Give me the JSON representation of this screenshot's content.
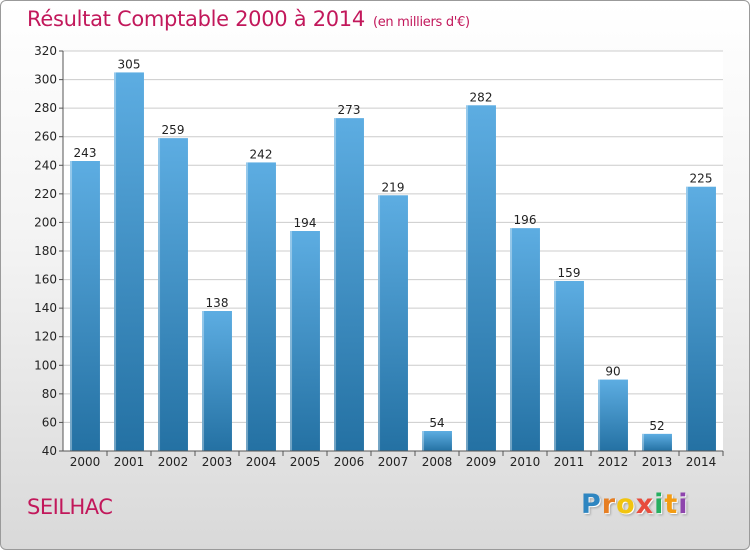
{
  "chart_data": {
    "type": "bar",
    "title": "Résultat Comptable 2000 à 2014",
    "subtitle": "(en milliers d'€)",
    "categories": [
      "2000",
      "2001",
      "2002",
      "2003",
      "2004",
      "2005",
      "2006",
      "2007",
      "2008",
      "2009",
      "2010",
      "2011",
      "2012",
      "2013",
      "2014"
    ],
    "values": [
      243,
      305,
      259,
      138,
      242,
      194,
      273,
      219,
      54,
      282,
      196,
      159,
      90,
      52,
      225
    ],
    "value_labels": [
      "243",
      "305",
      "259",
      "138",
      "242",
      "194",
      "273",
      "219",
      "54",
      "282",
      "196",
      "159",
      "90",
      "52",
      "225"
    ],
    "ylim": [
      40,
      320
    ],
    "yticks": [
      40,
      60,
      80,
      100,
      120,
      140,
      160,
      180,
      200,
      220,
      240,
      260,
      280,
      300,
      320
    ],
    "ytick_labels": [
      "40",
      "60",
      "80",
      "100",
      "120",
      "140",
      "160",
      "180",
      "200",
      "220",
      "240",
      "260",
      "280",
      "300",
      "320"
    ],
    "grid": true,
    "xlabel": "",
    "ylabel": ""
  },
  "footer": {
    "city": "SEILHAC",
    "logo_letters": [
      "P",
      "r",
      "o",
      "x",
      "i",
      "t",
      "i"
    ]
  },
  "colors": {
    "title": "#c2185b",
    "bar_top": "#5dade2",
    "bar_bottom": "#2471a3",
    "grid": "#cccccc",
    "logo": [
      "#2e86c1",
      "#e67e22",
      "#f1c40f",
      "#e74c3c",
      "#27ae60",
      "#f39c12",
      "#8e44ad"
    ]
  }
}
